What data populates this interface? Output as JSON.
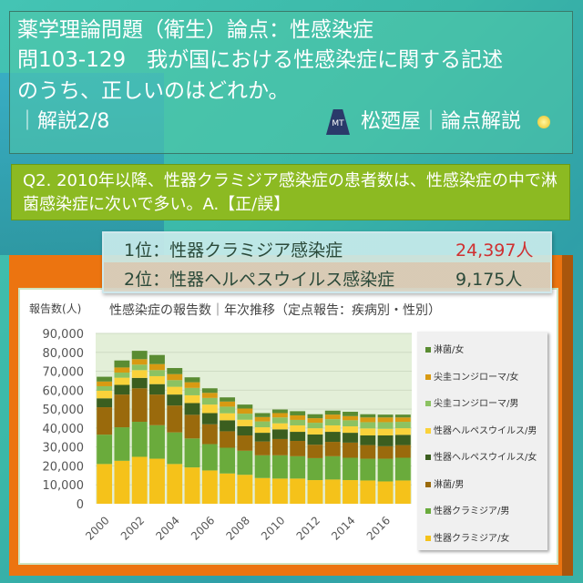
{
  "header": {
    "title": "薬学理論問題（衛生）論点：性感染症",
    "question_line1": "問103-129　我が国における性感染症に関する記述",
    "question_line2": "のうち、正しいのはどれか。",
    "page": "｜解説2/8",
    "logo_text": "MT",
    "brand": "松廼屋｜論点解説"
  },
  "question": {
    "text": "Q2. 2010年以降、性器クラミジア感染症の患者数は、性感染症の中で淋菌感染症に次いで多い。A.【正/誤】"
  },
  "callout": {
    "rank1_label": "1位：性器クラミジア感染症",
    "rank1_value": "24,397人",
    "rank2_label": "2位：性器ヘルペスウイルス感染症",
    "rank2_value": "9,175人",
    "rank1_color": "#d03030"
  },
  "chart_data": {
    "type": "bar",
    "stacked": true,
    "title": "性感染症の報告数｜年次推移（定点報告：疾病別・性別）",
    "ylabel": "報告数(人)",
    "xlabel": "",
    "ylim": [
      0,
      90000
    ],
    "yticks": [
      "0",
      "10,000",
      "20,000",
      "30,000",
      "40,000",
      "50,000",
      "60,000",
      "70,000",
      "80,000",
      "90,000"
    ],
    "xtick_labels": [
      "2000",
      "2002",
      "2004",
      "2006",
      "2008",
      "2010",
      "2012",
      "2014",
      "2016"
    ],
    "grid": true,
    "legend_position": "right",
    "categories": [
      "2000",
      "2001",
      "2002",
      "2003",
      "2004",
      "2005",
      "2006",
      "2007",
      "2008",
      "2009",
      "2010",
      "2011",
      "2012",
      "2013",
      "2014",
      "2015",
      "2016",
      "2017"
    ],
    "series": [
      {
        "name": "性器クラミジア/女",
        "color": "#f5c21a",
        "values": [
          21000,
          22700,
          24800,
          23800,
          21000,
          19200,
          17600,
          16000,
          15300,
          13600,
          13300,
          13300,
          12500,
          12800,
          12500,
          12300,
          11800,
          12300
        ]
      },
      {
        "name": "性器クラミジア/男",
        "color": "#6aab3c",
        "values": [
          15500,
          17700,
          18500,
          17700,
          16700,
          15300,
          13900,
          13600,
          12700,
          12000,
          12300,
          11800,
          11600,
          12300,
          11800,
          11500,
          12000,
          12000
        ]
      },
      {
        "name": "淋菌/男",
        "color": "#9a6a0c",
        "values": [
          14500,
          17300,
          17700,
          16200,
          14200,
          12500,
          10500,
          8700,
          8100,
          7300,
          8600,
          8100,
          7100,
          7600,
          8000,
          7200,
          6600,
          6700
        ]
      },
      {
        "name": "性器ヘルペスウイルス/女",
        "color": "#3b5e1f",
        "values": [
          4700,
          5100,
          5500,
          5500,
          5800,
          6200,
          5900,
          5800,
          4900,
          4600,
          5100,
          4800,
          5400,
          5300,
          5200,
          5100,
          5700,
          5400
        ]
      },
      {
        "name": "性器ヘルペスウイルス/男",
        "color": "#fad23a",
        "values": [
          4000,
          3800,
          4100,
          4200,
          4100,
          4100,
          4500,
          3700,
          3400,
          2900,
          3200,
          3400,
          3300,
          3400,
          3400,
          3700,
          3500,
          3500
        ]
      },
      {
        "name": "尖圭コンジローマ/男",
        "color": "#8cc262",
        "values": [
          2400,
          2700,
          2900,
          3200,
          3500,
          3900,
          3500,
          3500,
          3200,
          3100,
          3100,
          2900,
          2900,
          3300,
          3200,
          3300,
          3500,
          3400
        ]
      },
      {
        "name": "尖圭コンジローマ/女",
        "color": "#d89a12",
        "values": [
          2500,
          2700,
          2900,
          3200,
          3200,
          3000,
          2700,
          2700,
          2700,
          2300,
          2300,
          2400,
          2400,
          2400,
          2200,
          2500,
          2500,
          2300
        ]
      },
      {
        "name": "淋菌/女",
        "color": "#5a8c32",
        "values": [
          2500,
          3700,
          4400,
          4800,
          3200,
          2600,
          2400,
          2200,
          2100,
          2100,
          1900,
          2200,
          2100,
          2100,
          2300,
          1700,
          1500,
          1500
        ]
      }
    ]
  }
}
